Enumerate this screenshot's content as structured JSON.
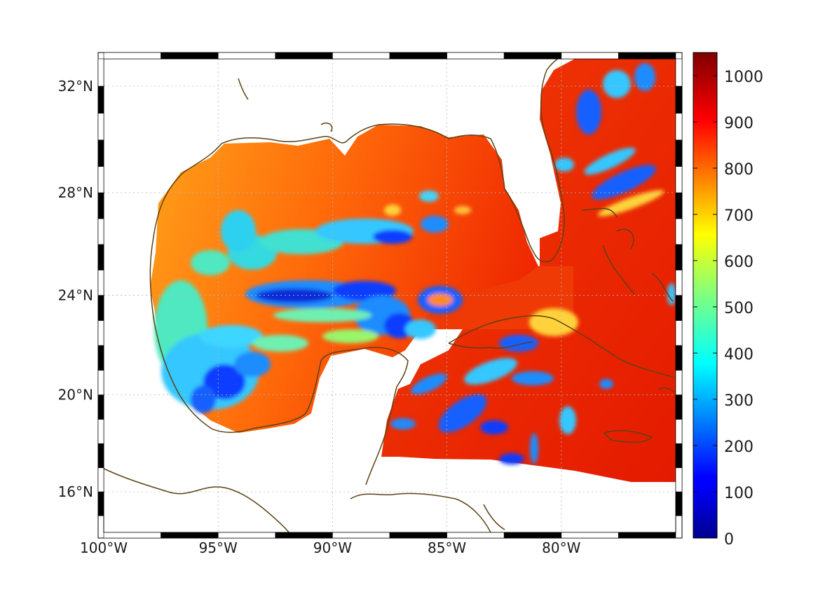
{
  "map": {
    "lon_range": [
      -100,
      -75
    ],
    "lat_range": [
      14.3,
      33
    ],
    "projection": "mercator",
    "coastline_color": "#5c4314",
    "grid": "dotted",
    "lon_ticks": [
      {
        "value": -100,
        "label": "100°W"
      },
      {
        "value": -95,
        "label": "95°W"
      },
      {
        "value": -90,
        "label": "90°W"
      },
      {
        "value": -85,
        "label": "85°W"
      },
      {
        "value": -80,
        "label": "80°W"
      }
    ],
    "lat_ticks": [
      {
        "value": 32,
        "label": "32°N"
      },
      {
        "value": 28,
        "label": "28°N"
      },
      {
        "value": 24,
        "label": "24°N"
      },
      {
        "value": 20,
        "label": "20°N"
      },
      {
        "value": 16,
        "label": "16°N"
      }
    ],
    "field_colormap": "jet"
  },
  "colorbar": {
    "min": 0,
    "max": 1050,
    "colormap": "jet",
    "ticks": [
      {
        "value": 1000,
        "label": "1000"
      },
      {
        "value": 900,
        "label": "900"
      },
      {
        "value": 800,
        "label": "800"
      },
      {
        "value": 700,
        "label": "700"
      },
      {
        "value": 600,
        "label": "600"
      },
      {
        "value": 500,
        "label": "500"
      },
      {
        "value": 400,
        "label": "400"
      },
      {
        "value": 300,
        "label": "300"
      },
      {
        "value": 200,
        "label": "200"
      },
      {
        "value": 100,
        "label": "100"
      },
      {
        "value": 0,
        "label": "0"
      }
    ]
  }
}
